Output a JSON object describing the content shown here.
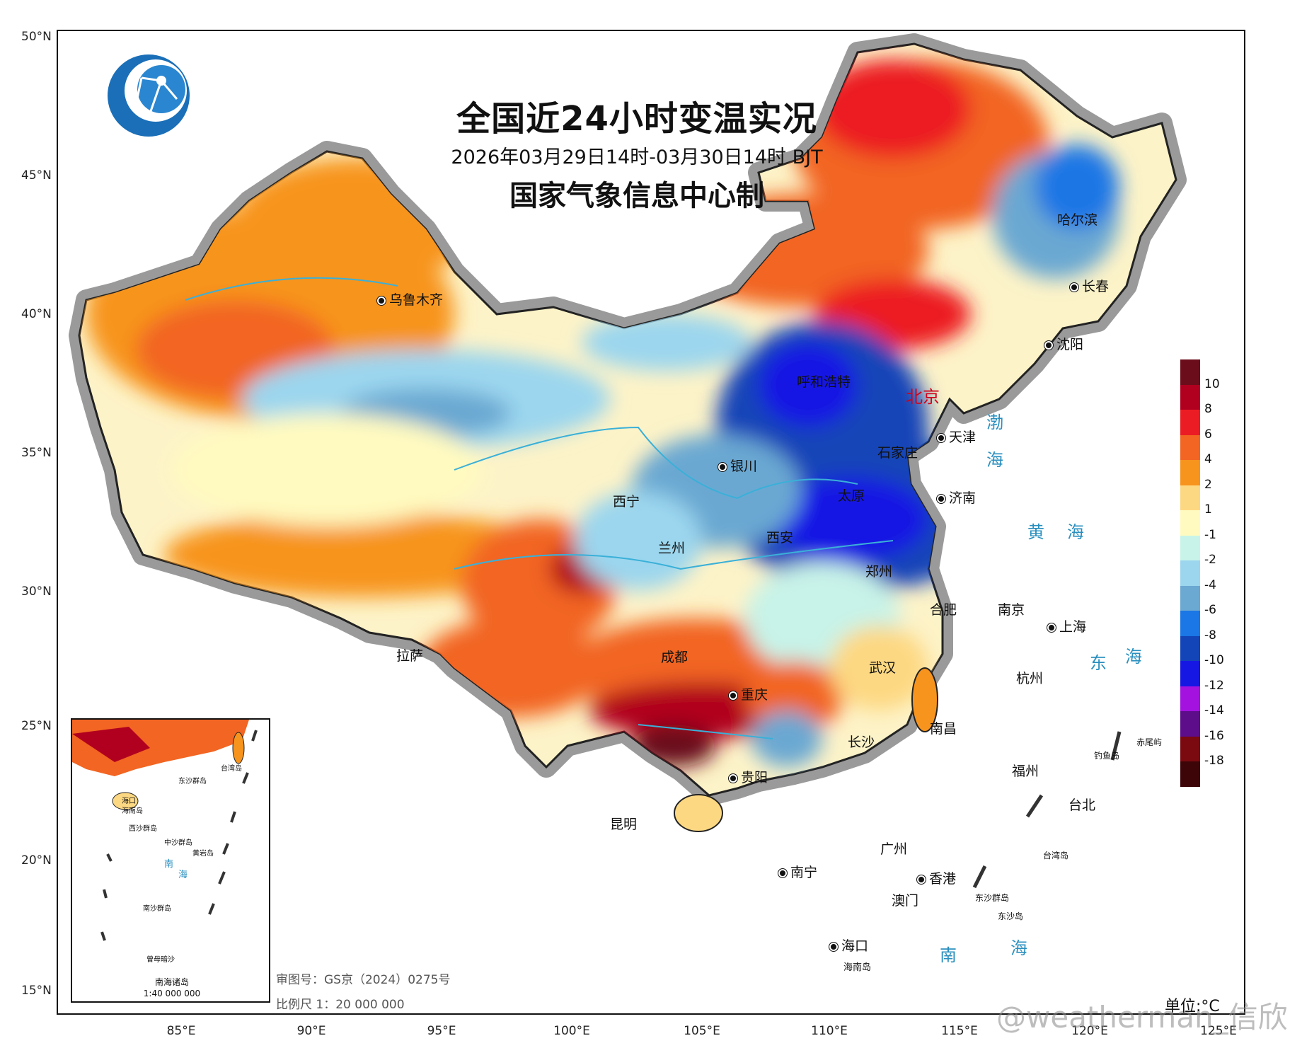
{
  "title": {
    "main": "全国近24小时变温实况",
    "period": "2026年03月29日14时-03月30日14时 BJT",
    "issuer": "国家气象信息中心制"
  },
  "axes": {
    "lat": [
      "50°N",
      "45°N",
      "40°N",
      "35°N",
      "30°N",
      "25°N",
      "20°N",
      "15°N"
    ],
    "lon": [
      "85°E",
      "90°E",
      "95°E",
      "100°E",
      "105°E",
      "110°E",
      "115°E",
      "120°E",
      "125°E"
    ]
  },
  "cities": [
    "乌鲁木齐",
    "哈尔滨",
    "长春",
    "沈阳",
    "呼和浩特",
    "北京",
    "天津",
    "石家庄",
    "太原",
    "济南",
    "银川",
    "西宁",
    "兰州",
    "西安",
    "郑州",
    "合肥",
    "南京",
    "上海",
    "拉萨",
    "成都",
    "武汉",
    "杭州",
    "重庆",
    "长沙",
    "南昌",
    "贵阳",
    "福州",
    "台北",
    "昆明",
    "南宁",
    "广州",
    "香港",
    "澳门",
    "海口",
    "海南岛"
  ],
  "seas": [
    "渤",
    "海",
    "黄",
    "海",
    "东",
    "海",
    "南",
    "海"
  ],
  "islands": [
    "钓鱼岛",
    "赤尾屿",
    "台湾岛",
    "东沙群岛",
    "东沙岛"
  ],
  "legend": {
    "colors": [
      "#6b0d1a",
      "#b1001f",
      "#ec1c24",
      "#f26522",
      "#f7941d",
      "#fdd882",
      "#fffac0",
      "#c8f3e8",
      "#9bd6ee",
      "#6ba8d2",
      "#1a77e5",
      "#1345b8",
      "#1717e4",
      "#a412e0",
      "#5d0c8a",
      "#7a0a10",
      "#3d0508"
    ],
    "labels": [
      "10",
      "8",
      "6",
      "4",
      "2",
      "1",
      "-1",
      "-2",
      "-4",
      "-6",
      "-8",
      "-10",
      "-12",
      "-14",
      "-16",
      "-18"
    ],
    "unit": "单位:°C"
  },
  "inset": {
    "title": "南海诸岛",
    "scale": "1:40 000 000",
    "labels": [
      "海口",
      "海南岛",
      "台湾岛",
      "东沙群岛",
      "西沙群岛",
      "中沙群岛",
      "南",
      "海",
      "黄岩岛",
      "南沙群岛",
      "曾母暗沙"
    ]
  },
  "footer": {
    "approval": "审图号：GS京（2024）0275号",
    "scale": "比例尺 1：20 000 000"
  },
  "watermark": "@weatherman_信欣"
}
